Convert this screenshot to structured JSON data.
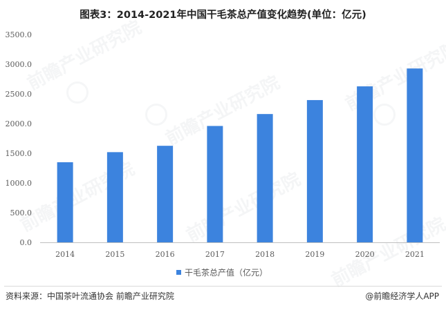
{
  "watermark": "前瞻产业研究院",
  "footer": {
    "source": "资料来源：中国茶叶流通协会 前瞻产业研究院",
    "brand": "@前瞻经济学人APP"
  },
  "chart_data": {
    "type": "bar",
    "title": "图表3：2014-2021年中国干毛茶总产值变化趋势(单位：亿元)",
    "categories": [
      "2014",
      "2015",
      "2016",
      "2017",
      "2018",
      "2019",
      "2020",
      "2021"
    ],
    "series": [
      {
        "name": "干毛茶总产值（亿元）",
        "values": [
          1349,
          1519,
          1626,
          1960,
          2161,
          2396,
          2627,
          2928
        ],
        "color": "#3c83de"
      }
    ],
    "yticks": [
      "0.0",
      "500.0",
      "1000.0",
      "1500.0",
      "2000.0",
      "2500.0",
      "3000.0",
      "3500.0"
    ],
    "ylim": [
      0,
      3500
    ],
    "grid": false,
    "legend_position": "bottom"
  }
}
